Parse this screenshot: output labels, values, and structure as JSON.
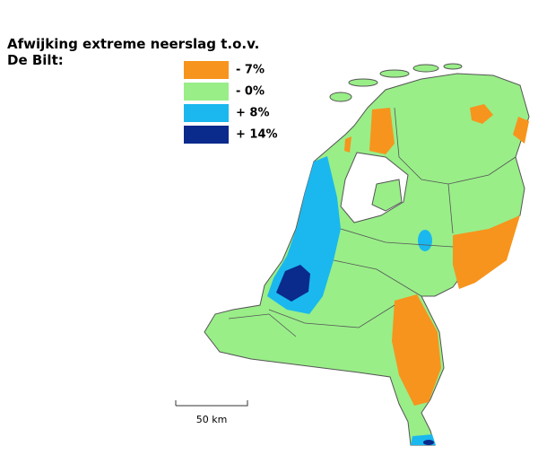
{
  "map": {
    "title_lines": [
      "Afwijking extreme neerslag t.o.v.",
      "De Bilt:"
    ],
    "legend": [
      {
        "label": "- 7%",
        "color": "#f7941d"
      },
      {
        "label": "- 0%",
        "color": "#99ee88"
      },
      {
        "label": "+ 8%",
        "color": "#1ab8ef"
      },
      {
        "label": "+ 14%",
        "color": "#0a2a8c"
      }
    ],
    "scale_label": "50 km"
  }
}
